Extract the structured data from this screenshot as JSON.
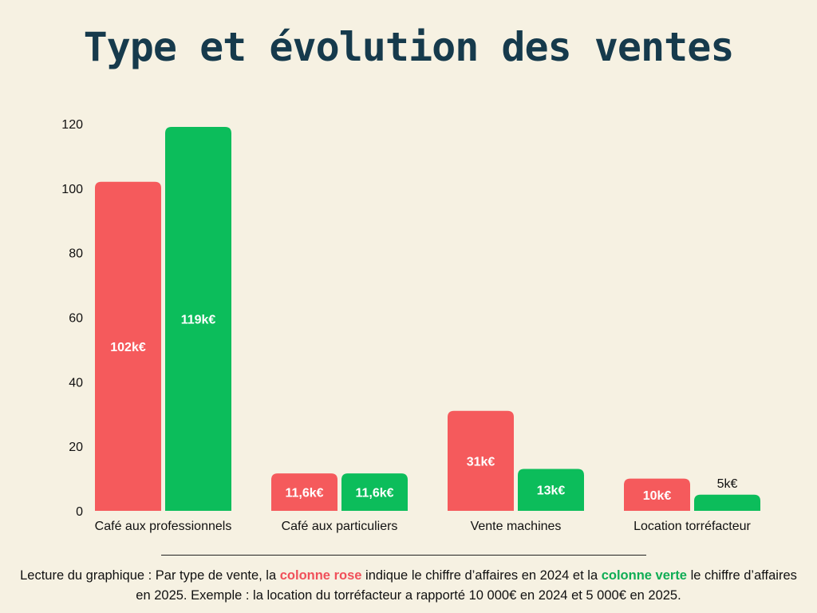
{
  "title": "Type et évolution des ventes",
  "colors": {
    "rose": "#f55a5c",
    "verte": "#0cbd5b",
    "background": "#f6f1e2",
    "title": "#163a4c"
  },
  "chart_data": {
    "type": "bar",
    "title": "Type et évolution des ventes",
    "xlabel": "",
    "ylabel": "",
    "ylim": [
      0,
      120
    ],
    "yticks": [
      0,
      20,
      40,
      60,
      80,
      100,
      120
    ],
    "grid": false,
    "legend": "none",
    "categories": [
      "Café aux professionnels",
      "Café aux particuliers",
      "Vente machines",
      "Location torréfacteur"
    ],
    "series": [
      {
        "values": [
          102,
          11.6,
          31,
          10
        ],
        "labels": [
          "102k€",
          "11,6k€",
          "31k€",
          "10k€"
        ],
        "color": "#f55a5c"
      },
      {
        "values": [
          119,
          11.6,
          13,
          5
        ],
        "labels": [
          "119k€",
          "11,6k€",
          "13k€",
          "5k€"
        ],
        "color": "#0cbd5b"
      }
    ]
  },
  "caption": {
    "part1": "Lecture du graphique : Par type de vente, la ",
    "rose": "colonne rose",
    "part2": " indique le chiffre d’affaires en 2024 et la ",
    "verte": "colonne verte",
    "part3": " le chiffre d’affaires en 2025. Exemple : la location du torréfacteur a rapporté 10 000€ en 2024 et 5 000€ en 2025."
  }
}
